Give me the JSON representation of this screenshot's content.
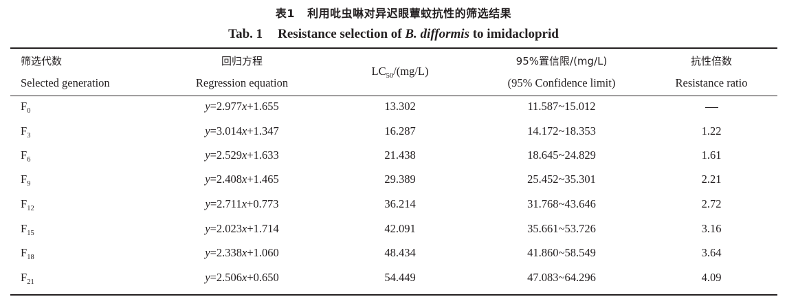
{
  "caption": {
    "cn_prefix": "表1",
    "cn_title": "利用吡虫啉对异迟眼蕈蚊抗性的筛选结果",
    "en_prefix": "Tab. 1",
    "en_title_pre": "Resistance selection of ",
    "en_species": "B. difformis",
    "en_title_post": " to imidacloprid"
  },
  "headers": [
    {
      "cn": "筛选代数",
      "en": "Selected generation"
    },
    {
      "cn": "回归方程",
      "en": "Regression equation"
    },
    {
      "main": "LC",
      "sub": "50",
      "unit": "/(mg/L)"
    },
    {
      "cn": "95%置信限/(mg/L)",
      "en": "(95% Confidence limit)"
    },
    {
      "cn": "抗性倍数",
      "en": "Resistance ratio"
    }
  ],
  "rows": [
    {
      "gen": "F",
      "gen_sub": "0",
      "slope": "2.977",
      "intercept": "+1.655",
      "lc50": "13.302",
      "ci": "11.587~15.012",
      "ratio": ""
    },
    {
      "gen": "F",
      "gen_sub": "3",
      "slope": "3.014",
      "intercept": "+1.347",
      "lc50": "16.287",
      "ci": "14.172~18.353",
      "ratio": "1.22"
    },
    {
      "gen": "F",
      "gen_sub": "6",
      "slope": "2.529",
      "intercept": "+1.633",
      "lc50": "21.438",
      "ci": "18.645~24.829",
      "ratio": "1.61"
    },
    {
      "gen": "F",
      "gen_sub": "9",
      "slope": "2.408",
      "intercept": "+1.465",
      "lc50": "29.389",
      "ci": "25.452~35.301",
      "ratio": "2.21"
    },
    {
      "gen": "F",
      "gen_sub": "12",
      "slope": "2.711",
      "intercept": "+0.773",
      "lc50": "36.214",
      "ci": "31.768~43.646",
      "ratio": "2.72"
    },
    {
      "gen": "F",
      "gen_sub": "15",
      "slope": "2.023",
      "intercept": "+1.714",
      "lc50": "42.091",
      "ci": "35.661~53.726",
      "ratio": "3.16"
    },
    {
      "gen": "F",
      "gen_sub": "18",
      "slope": "2.338",
      "intercept": "+1.060",
      "lc50": "48.434",
      "ci": "41.860~58.549",
      "ratio": "3.64"
    },
    {
      "gen": "F",
      "gen_sub": "21",
      "slope": "2.506",
      "intercept": "+0.650",
      "lc50": "54.449",
      "ci": "47.083~64.296",
      "ratio": "4.09"
    }
  ]
}
